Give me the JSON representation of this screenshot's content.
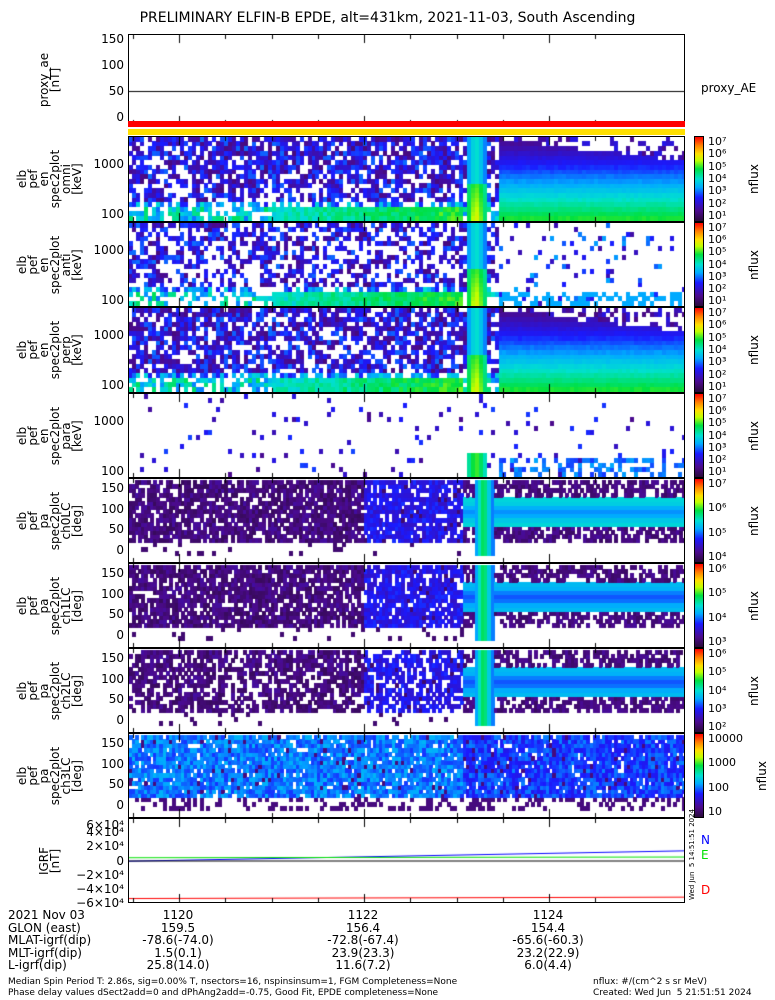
{
  "title": "PRELIMINARY ELFIN-B EPDE, alt=431km, 2021-11-03, South Ascending",
  "chart_data": [
    {
      "type": "line",
      "name": "proxy_ae",
      "ylabel": "proxy_ae\n[nT]",
      "ylim": [
        -15,
        160
      ],
      "yticks": [
        "150",
        "100",
        "50",
        "0"
      ],
      "yvals": [
        150,
        100,
        50,
        0
      ],
      "legend": "proxy_AE",
      "values_note": "flat at 50"
    },
    {
      "type": "heatmap",
      "name": "omni",
      "ylabel": "elb\npef\nen\nspec2plot\nomni\n[keV]",
      "yticks": [
        "1000",
        "100"
      ],
      "colorbar": [
        "10⁷",
        "10⁶",
        "10⁵",
        "10⁴",
        "10³",
        "10²",
        "10¹"
      ],
      "zlabel": "nflux"
    },
    {
      "type": "heatmap",
      "name": "anti",
      "ylabel": "elb\npef\nen\nspec2plot\nanti\n[keV]",
      "yticks": [
        "1000",
        "100"
      ],
      "colorbar": [
        "10⁷",
        "10⁶",
        "10⁵",
        "10⁴",
        "10³",
        "10²",
        "10¹"
      ],
      "zlabel": "nflux"
    },
    {
      "type": "heatmap",
      "name": "perp",
      "ylabel": "elb\npef\nen\nspec2plot\nperp\n[keV]",
      "yticks": [
        "1000",
        "100"
      ],
      "colorbar": [
        "10⁷",
        "10⁶",
        "10⁵",
        "10⁴",
        "10³",
        "10²",
        "10¹"
      ],
      "zlabel": "nflux"
    },
    {
      "type": "heatmap",
      "name": "para",
      "ylabel": "elb\npef\nen\nspec2plot\npara\n[keV]",
      "yticks": [
        "1000",
        "100"
      ],
      "colorbar": [
        "10⁷",
        "10⁶",
        "10⁵",
        "10⁴",
        "10³",
        "10²",
        "10¹"
      ],
      "zlabel": "nflux"
    },
    {
      "type": "heatmap",
      "name": "ch0LC",
      "ylabel": "elb\npef\npa\nspec2plot\nch0LC\n[deg]",
      "yticks": [
        "150",
        "100",
        "50",
        "0"
      ],
      "colorbar": [
        "10⁷",
        "10⁶",
        "10⁵",
        "10⁴"
      ],
      "zlabel": "nflux"
    },
    {
      "type": "heatmap",
      "name": "ch1LC",
      "ylabel": "elb\npef\npa\nspec2plot\nch1LC\n[deg]",
      "yticks": [
        "150",
        "100",
        "50",
        "0"
      ],
      "colorbar": [
        "10⁶",
        "10⁵",
        "10⁴",
        "10³"
      ],
      "zlabel": "nflux"
    },
    {
      "type": "heatmap",
      "name": "ch2LC",
      "ylabel": "elb\npef\npa\nspec2plot\nch2LC\n[deg]",
      "yticks": [
        "150",
        "100",
        "50",
        "0"
      ],
      "colorbar": [
        "10⁶",
        "10⁵",
        "10⁴",
        "10³",
        "10²"
      ],
      "zlabel": "nflux"
    },
    {
      "type": "heatmap",
      "name": "ch3LC",
      "ylabel": "elb\npef\npa\nspec2plot\nch3LC\n[deg]",
      "yticks": [
        "150",
        "100",
        "50",
        "0"
      ],
      "colorbar": [
        "10000",
        "1000",
        "100",
        "10"
      ],
      "zlabel": "nflux"
    },
    {
      "type": "line",
      "name": "igrf",
      "ylabel": "IGRF\n[nT]",
      "ylim": [
        -60000,
        60000
      ],
      "yticks": [
        "6×10⁴",
        "4×10⁴",
        "2×10⁴",
        "0",
        "−2×10⁴",
        "−4×10⁴",
        "−6×10⁴"
      ],
      "yvals": [
        60000,
        40000,
        20000,
        0,
        -20000,
        -40000,
        -60000
      ],
      "series": [
        {
          "name": "N",
          "color": "#0000ff",
          "values": [
            -1000,
            14000
          ]
        },
        {
          "name": "E",
          "color": "#00e000",
          "values": [
            4000,
            5000
          ]
        },
        {
          "name": "D",
          "color": "#ff0000",
          "values": [
            -55000,
            -53000
          ]
        }
      ]
    }
  ],
  "side_stamp": "Wed Jun  5 14:51:51 2024",
  "xaxis": {
    "rows": [
      "2021 Nov 03",
      "GLON (east)",
      "MLAT-igrf(dip)",
      "MLT-igrf(dip)",
      "L-igrf(dip)"
    ],
    "columns": [
      [
        "1120",
        "159.5",
        "-78.6(-74.0)",
        "1.5(0.1)",
        "25.8(14.0)"
      ],
      [
        "1122",
        "156.4",
        "-72.8(-67.4)",
        "23.9(23.3)",
        "11.6(7.2)"
      ],
      [
        "1124",
        "154.4",
        "-65.6(-60.3)",
        "23.2(22.9)",
        "6.0(4.4)"
      ]
    ]
  },
  "footer": {
    "line1": "Median Spin Period T: 2.86s, sig=0.00% T, nsectors=16, nspinsinsum=1, FGM Completeness=None",
    "line2": "Phase delay values dSect2add=0 and dPhAng2add=-0.75, Good Fit, EPDE completeness=None",
    "units": "nflux: #/(cm^2 s sr MeV)",
    "created": "Created: Wed Jun  5 21:51:51 2024"
  }
}
